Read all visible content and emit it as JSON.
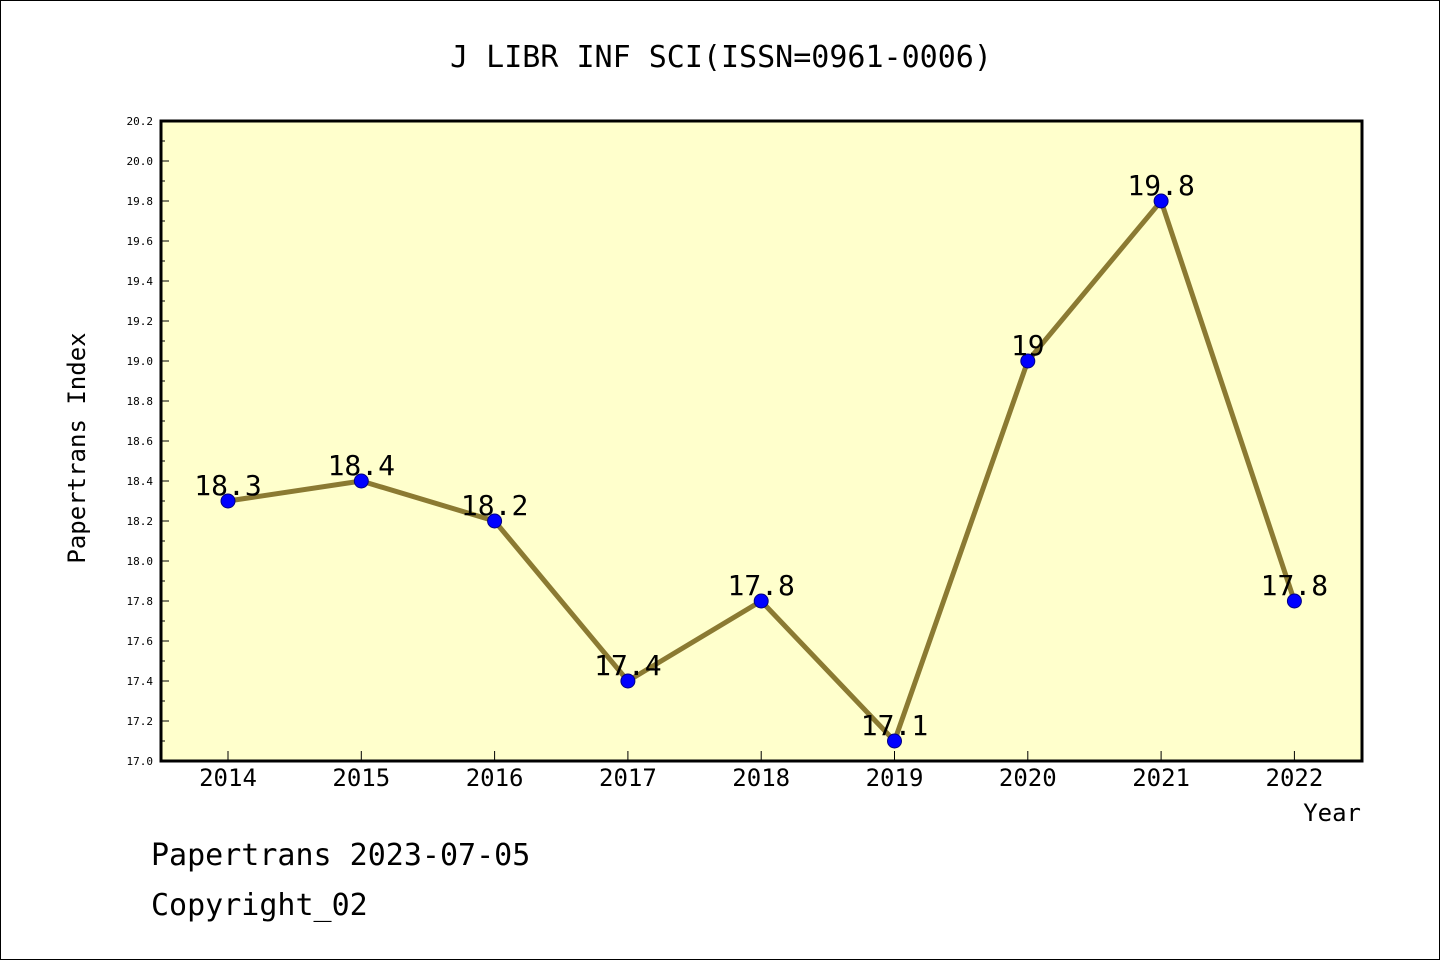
{
  "chart_data": {
    "type": "line",
    "title": "J LIBR INF SCI(ISSN=0961-0006)",
    "xlabel": "Year",
    "ylabel": "Papertrans Index",
    "categories": [
      "2014",
      "2015",
      "2016",
      "2017",
      "2018",
      "2019",
      "2020",
      "2021",
      "2022"
    ],
    "series": [
      {
        "values": [
          18.3,
          18.4,
          18.2,
          17.4,
          17.8,
          17.1,
          19.0,
          19.8,
          17.8
        ],
        "labels": [
          "18.3",
          "18.4",
          "18.2",
          "17.4",
          "17.8",
          "17.1",
          "19",
          "19.8",
          "17.8"
        ]
      }
    ],
    "ylim": [
      17.0,
      20.2
    ],
    "yticks": [
      "17.0",
      "17.2",
      "17.4",
      "17.6",
      "17.8",
      "18.0",
      "18.2",
      "18.4",
      "18.6",
      "18.8",
      "19.0",
      "19.2",
      "19.4",
      "19.6",
      "19.8",
      "20.0",
      "20.2"
    ],
    "grid": false,
    "legend": "none",
    "colors": {
      "plot_background": "#ffffcc",
      "line": "#8b7a32",
      "marker": "#0000ff",
      "axis": "#000000"
    }
  },
  "footer": {
    "line1": "Papertrans 2023-07-05",
    "line2": "Copyright_02"
  }
}
